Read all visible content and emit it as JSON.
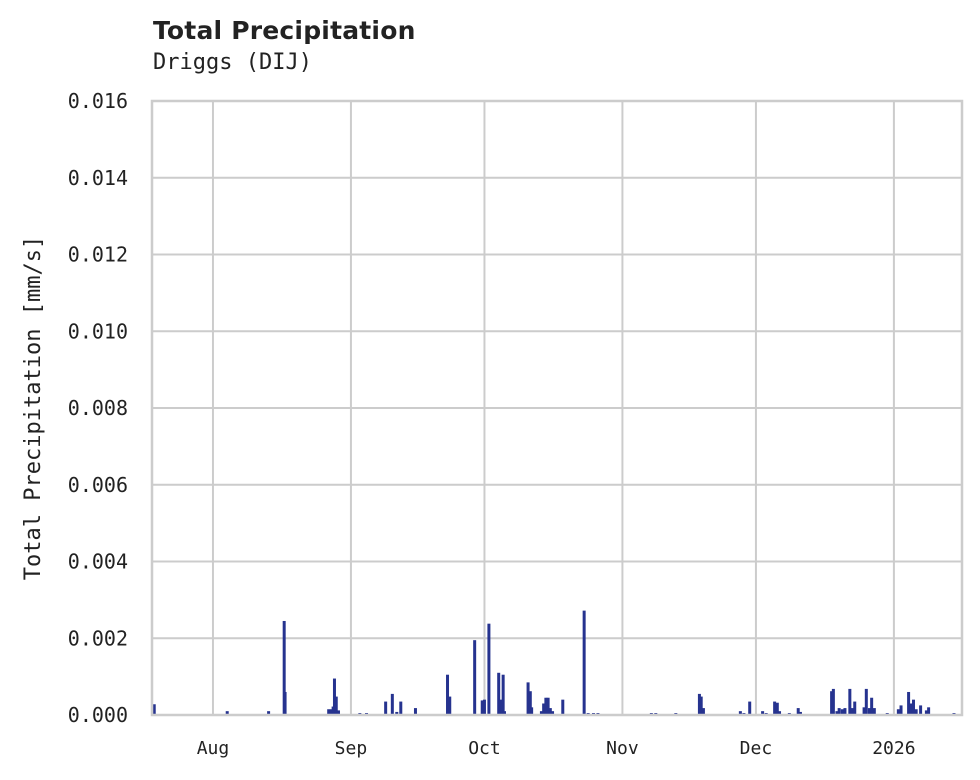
{
  "header": {
    "title": "Total Precipitation",
    "subtitle": "Driggs (DIJ)"
  },
  "chart_data": {
    "type": "bar",
    "title": "Total Precipitation",
    "subtitle": "Driggs (DIJ)",
    "xlabel": "",
    "ylabel": "Total Precipitation [mm/s]",
    "ylim": [
      0,
      0.016
    ],
    "yticks": [
      "0.000",
      "0.002",
      "0.004",
      "0.006",
      "0.008",
      "0.010",
      "0.012",
      "0.014",
      "0.016"
    ],
    "xticks": [
      "Aug",
      "Sep",
      "Oct",
      "Nov",
      "Dec",
      "2026"
    ],
    "xtick_day_offsets": [
      0,
      31,
      61,
      92,
      122,
      153
    ],
    "x_range_day_offsets": [
      -13.7,
      168.3
    ],
    "x_reference": "day offset from Aug 1 (2025)",
    "grid": true,
    "legend": null,
    "color": "#26338f",
    "series": [
      {
        "name": "Total Precipitation",
        "points": [
          {
            "day": -13.2,
            "value": 0.00028
          },
          {
            "day": 3.2,
            "value": 0.0001
          },
          {
            "day": 12.5,
            "value": 0.0001
          },
          {
            "day": 16.0,
            "value": 0.00245
          },
          {
            "day": 16.2,
            "value": 0.0006
          },
          {
            "day": 26.0,
            "value": 0.00015
          },
          {
            "day": 26.6,
            "value": 0.00015
          },
          {
            "day": 27.0,
            "value": 0.00022
          },
          {
            "day": 27.3,
            "value": 0.00095
          },
          {
            "day": 27.7,
            "value": 0.00048
          },
          {
            "day": 28.2,
            "value": 0.00012
          },
          {
            "day": 33.0,
            "value": 5e-05
          },
          {
            "day": 34.5,
            "value": 5e-05
          },
          {
            "day": 38.8,
            "value": 0.00035
          },
          {
            "day": 40.3,
            "value": 0.00055
          },
          {
            "day": 41.3,
            "value": 8e-05
          },
          {
            "day": 42.2,
            "value": 0.00035
          },
          {
            "day": 45.5,
            "value": 0.00018
          },
          {
            "day": 52.7,
            "value": 0.00105
          },
          {
            "day": 53.2,
            "value": 0.00048
          },
          {
            "day": 58.8,
            "value": 0.00195
          },
          {
            "day": 60.5,
            "value": 0.00038
          },
          {
            "day": 61.0,
            "value": 0.0004
          },
          {
            "day": 62.0,
            "value": 0.00238
          },
          {
            "day": 64.2,
            "value": 0.0011
          },
          {
            "day": 64.6,
            "value": 0.0004
          },
          {
            "day": 65.2,
            "value": 0.00105
          },
          {
            "day": 65.5,
            "value": 0.0001
          },
          {
            "day": 70.8,
            "value": 0.00085
          },
          {
            "day": 71.3,
            "value": 0.00062
          },
          {
            "day": 71.6,
            "value": 0.0002
          },
          {
            "day": 73.8,
            "value": 0.0001
          },
          {
            "day": 74.3,
            "value": 0.0003
          },
          {
            "day": 74.8,
            "value": 0.00045
          },
          {
            "day": 75.3,
            "value": 0.00045
          },
          {
            "day": 75.8,
            "value": 0.00018
          },
          {
            "day": 76.3,
            "value": 0.0001
          },
          {
            "day": 78.6,
            "value": 0.0004
          },
          {
            "day": 83.4,
            "value": 0.00272
          },
          {
            "day": 84.3,
            "value": 5e-05
          },
          {
            "day": 85.5,
            "value": 5e-05
          },
          {
            "day": 86.5,
            "value": 5e-05
          },
          {
            "day": 98.5,
            "value": 5e-05
          },
          {
            "day": 99.5,
            "value": 5e-05
          },
          {
            "day": 104.0,
            "value": 5e-05
          },
          {
            "day": 109.3,
            "value": 0.00055
          },
          {
            "day": 109.7,
            "value": 0.00048
          },
          {
            "day": 110.2,
            "value": 0.00018
          },
          {
            "day": 118.5,
            "value": 0.0001
          },
          {
            "day": 119.3,
            "value": 5e-05
          },
          {
            "day": 120.6,
            "value": 0.00035
          },
          {
            "day": 123.5,
            "value": 0.0001
          },
          {
            "day": 124.3,
            "value": 5e-05
          },
          {
            "day": 126.2,
            "value": 0.00035
          },
          {
            "day": 126.8,
            "value": 0.00032
          },
          {
            "day": 127.3,
            "value": 0.0001
          },
          {
            "day": 129.5,
            "value": 5e-05
          },
          {
            "day": 131.5,
            "value": 0.00018
          },
          {
            "day": 132.0,
            "value": 8e-05
          },
          {
            "day": 139.0,
            "value": 0.00062
          },
          {
            "day": 139.4,
            "value": 0.00068
          },
          {
            "day": 140.2,
            "value": 0.0001
          },
          {
            "day": 140.7,
            "value": 0.00018
          },
          {
            "day": 141.4,
            "value": 0.00015
          },
          {
            "day": 142.0,
            "value": 0.00018
          },
          {
            "day": 143.1,
            "value": 0.00068
          },
          {
            "day": 143.6,
            "value": 0.00018
          },
          {
            "day": 144.2,
            "value": 0.00035
          },
          {
            "day": 146.3,
            "value": 0.0002
          },
          {
            "day": 146.8,
            "value": 0.00068
          },
          {
            "day": 147.5,
            "value": 0.00018
          },
          {
            "day": 148.0,
            "value": 0.00045
          },
          {
            "day": 148.6,
            "value": 0.00018
          },
          {
            "day": 151.5,
            "value": 5e-05
          },
          {
            "day": 154.0,
            "value": 0.00015
          },
          {
            "day": 154.6,
            "value": 0.00025
          },
          {
            "day": 156.3,
            "value": 0.0006
          },
          {
            "day": 156.8,
            "value": 0.0003
          },
          {
            "day": 157.4,
            "value": 0.0004
          },
          {
            "day": 158.0,
            "value": 0.00015
          },
          {
            "day": 159.0,
            "value": 0.00025
          },
          {
            "day": 160.3,
            "value": 0.00012
          },
          {
            "day": 160.8,
            "value": 0.0002
          },
          {
            "day": 166.5,
            "value": 5e-05
          }
        ]
      }
    ]
  }
}
